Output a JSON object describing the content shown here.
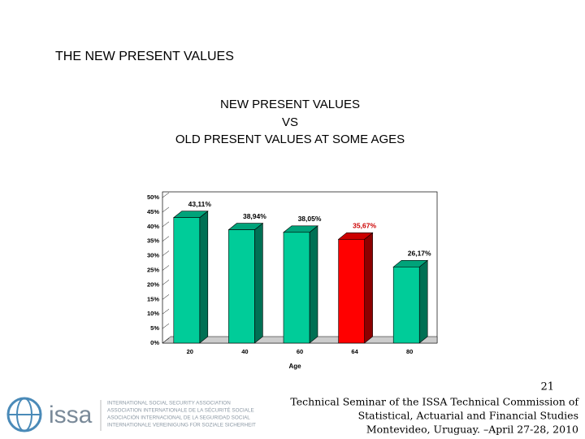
{
  "header": {
    "title": "THE NEW PRESENT VALUES"
  },
  "chart_data": {
    "type": "bar",
    "title_lines": [
      "NEW PRESENT VALUES",
      "VS",
      "OLD PRESENT VALUES AT SOME AGES"
    ],
    "x_label": "Age",
    "categories": [
      "20",
      "40",
      "60",
      "64",
      "80"
    ],
    "values": [
      43.11,
      38.94,
      38.05,
      35.67,
      26.17
    ],
    "value_labels": [
      "43,11%",
      "38,94%",
      "38,05%",
      "35,67%",
      "26,17%"
    ],
    "colors": [
      "#00cc99",
      "#00cc99",
      "#00cc99",
      "#ff0000",
      "#00cc99"
    ],
    "value_label_colors": [
      "#000000",
      "#000000",
      "#000000",
      "#cc0000",
      "#000000"
    ],
    "ylim": [
      0,
      50
    ],
    "yticks": [
      {
        "value": 0,
        "label": "0%"
      },
      {
        "value": 5,
        "label": "5%"
      },
      {
        "value": 10,
        "label": "10%"
      },
      {
        "value": 15,
        "label": "15%"
      },
      {
        "value": 20,
        "label": "20%"
      },
      {
        "value": 25,
        "label": "25%"
      },
      {
        "value": 30,
        "label": "30%"
      },
      {
        "value": 35,
        "label": "35%"
      },
      {
        "value": 40,
        "label": "40%"
      },
      {
        "value": 45,
        "label": "45%"
      },
      {
        "value": 50,
        "label": "50%"
      }
    ]
  },
  "footer": {
    "page": "21",
    "lines": [
      "Technical Seminar of the ISSA Technical Commission of",
      "Statistical, Actuarial and Financial Studies",
      "Montevideo, Uruguay. –April 27-28, 2010"
    ],
    "logo": {
      "name": "issa",
      "lines": [
        "INTERNATIONAL SOCIAL SECURITY ASSOCIATION",
        "ASSOCIATION INTERNATIONALE DE LA SÉCURITÉ SOCIALE",
        "ASOCIACIÓN INTERNACIONAL DE LA SEGURIDAD SOCIAL",
        "INTERNATIONALE VEREINIGUNG FÜR SOZIALE SICHERHEIT"
      ]
    }
  }
}
